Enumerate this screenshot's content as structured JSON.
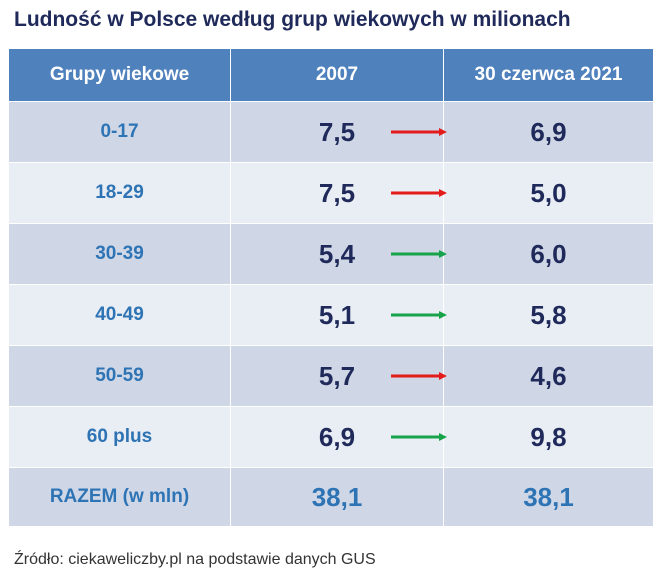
{
  "title": "Ludność w Polsce według grup wiekowych w milionach",
  "table": {
    "headers": [
      "Grupy wiekowe",
      "2007",
      "30 czerwca 2021"
    ],
    "rows": [
      {
        "group": "0-17",
        "v2007": "7,5",
        "v2021": "6,9",
        "trend": "down"
      },
      {
        "group": "18-29",
        "v2007": "7,5",
        "v2021": "5,0",
        "trend": "down"
      },
      {
        "group": "30-39",
        "v2007": "5,4",
        "v2021": "6,0",
        "trend": "up"
      },
      {
        "group": "40-49",
        "v2007": "5,1",
        "v2021": "5,8",
        "trend": "up"
      },
      {
        "group": "50-59",
        "v2007": "5,7",
        "v2021": "4,6",
        "trend": "down"
      },
      {
        "group": "60 plus",
        "v2007": "6,9",
        "v2021": "9,8",
        "trend": "up"
      }
    ],
    "total": {
      "label": "RAZEM (w mln)",
      "v2007": "38,1",
      "v2021": "38,1"
    }
  },
  "source": "Źródło: ciekaweliczby.pl na podstawie danych GUS",
  "colors": {
    "header_bg": "#4f81bd",
    "arrow_up": "#16a34a",
    "arrow_down": "#e31b1b"
  },
  "chart_data": {
    "type": "table",
    "title": "Ludność w Polsce według grup wiekowych w milionach",
    "columns": [
      "Grupy wiekowe",
      "2007",
      "30 czerwca 2021"
    ],
    "categories": [
      "0-17",
      "18-29",
      "30-39",
      "40-49",
      "50-59",
      "60 plus"
    ],
    "series": [
      {
        "name": "2007",
        "values": [
          7.5,
          7.5,
          5.4,
          5.1,
          5.7,
          6.9
        ]
      },
      {
        "name": "30 czerwca 2021",
        "values": [
          6.9,
          5.0,
          6.0,
          5.8,
          4.6,
          9.8
        ]
      }
    ],
    "totals": {
      "2007": 38.1,
      "30 czerwca 2021": 38.1
    }
  }
}
